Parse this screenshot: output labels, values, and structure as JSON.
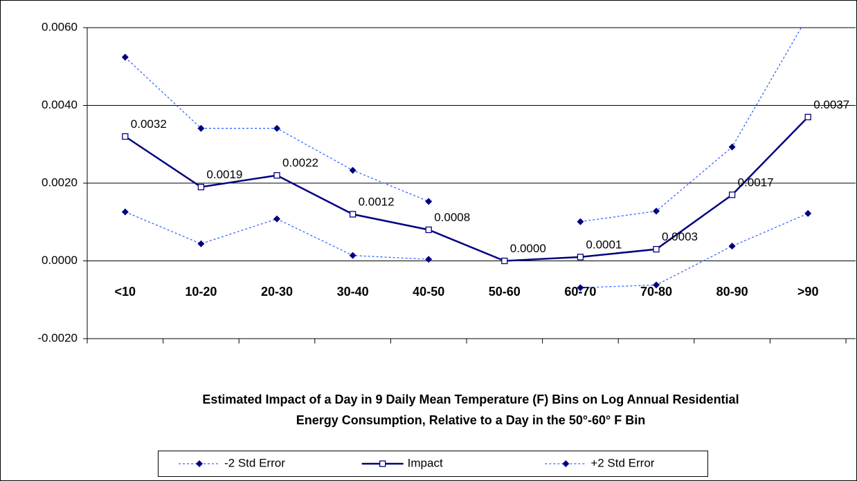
{
  "chart_data": {
    "type": "line",
    "x_label": [
      "Estimated Impact of a Day in 9 Daily Mean Temperature (F) Bins on Log Annual Residential",
      "Energy Consumption, Relative to a Day in the 50°-60° F Bin"
    ],
    "categories": [
      "<10",
      "10-20",
      "20-30",
      "30-40",
      "40-50",
      "50-60",
      "60-70",
      "70-80",
      "80-90",
      ">90"
    ],
    "series": [
      {
        "name": "-2 Std Error",
        "color": "#3366ff",
        "marker_color": "#000080",
        "marker": "diamond",
        "dashed": true,
        "values": [
          0.00126,
          0.00044,
          0.00108,
          0.00014,
          4e-05,
          null,
          -0.00069,
          -0.00062,
          0.00038,
          0.00122
        ]
      },
      {
        "name": "Impact",
        "color": "#000080",
        "marker_color": "#000080",
        "marker": "square",
        "dashed": false,
        "values": [
          0.0032,
          0.0019,
          0.0022,
          0.0012,
          0.0008,
          0.0,
          0.0001,
          0.0003,
          0.0017,
          0.0037
        ],
        "value_labels": [
          "0.0032",
          "0.0019",
          "0.0022",
          "0.0012",
          "0.0008",
          "0.0000",
          "0.0001",
          "0.0003",
          "0.0017",
          "0.0037"
        ]
      },
      {
        "name": "+2 Std Error",
        "color": "#3366ff",
        "marker_color": "#000080",
        "marker": "diamond",
        "dashed": true,
        "values": [
          0.00524,
          0.00341,
          0.00341,
          0.00233,
          0.00153,
          null,
          0.00101,
          0.00128,
          0.00293,
          0.0063
        ]
      }
    ],
    "ylim": [
      -0.002,
      0.006
    ],
    "yticks": [
      {
        "value": -0.002,
        "label": "-0.0020"
      },
      {
        "value": 0,
        "label": "0.0000"
      },
      {
        "value": 0.002,
        "label": "0.0020"
      },
      {
        "value": 0.004,
        "label": "0.0040"
      },
      {
        "value": 0.006,
        "label": "0.0060"
      }
    ],
    "grid": true,
    "legend": "bottom"
  }
}
